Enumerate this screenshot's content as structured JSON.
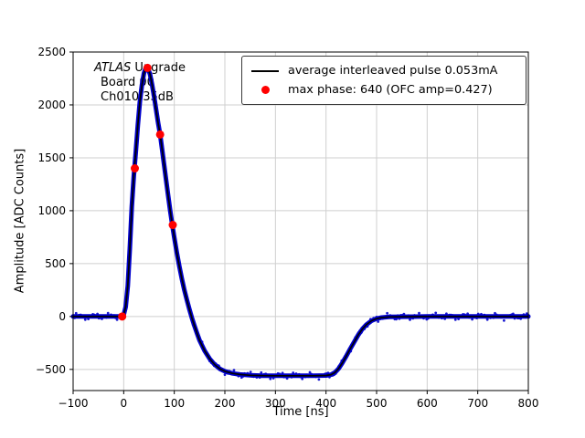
{
  "annotation": {
    "line1_italic": "ATLAS",
    "line1_rest": " Upgrade",
    "line2": "Board 00",
    "line3": "Ch010 35dB"
  },
  "chart_data": {
    "type": "line",
    "title": "",
    "xlabel": "Time [ns]",
    "ylabel": "Amplitude [ADC Counts]",
    "xlim": [
      -100,
      800
    ],
    "ylim": [
      -700,
      2500
    ],
    "xticks": [
      -100,
      0,
      100,
      200,
      300,
      400,
      500,
      600,
      700,
      800
    ],
    "yticks": [
      -500,
      0,
      500,
      1000,
      1500,
      2000,
      2500
    ],
    "grid": true,
    "legend_position": "upper right",
    "band_color": "#0000cc",
    "series": [
      {
        "name": "average interleaved pulse 0.053mA",
        "type": "line",
        "color": "#000000",
        "x": [
          -100,
          -90,
          -80,
          -70,
          -60,
          -50,
          -40,
          -30,
          -20,
          -10,
          -5,
          0,
          4,
          8,
          12,
          16,
          20,
          24,
          28,
          32,
          36,
          40,
          44,
          48,
          52,
          56,
          60,
          64,
          68,
          72,
          76,
          80,
          84,
          88,
          92,
          96,
          100,
          105,
          110,
          115,
          120,
          125,
          130,
          135,
          140,
          145,
          150,
          160,
          170,
          180,
          190,
          200,
          215,
          230,
          250,
          275,
          300,
          325,
          350,
          375,
          400,
          410,
          418,
          425,
          432,
          440,
          448,
          456,
          464,
          472,
          480,
          490,
          500,
          510,
          525,
          550,
          575,
          600,
          650,
          700,
          750,
          800
        ],
        "y": [
          0,
          0,
          0,
          0,
          0,
          0,
          0,
          0,
          0,
          0,
          0,
          15,
          90,
          290,
          640,
          1040,
          1330,
          1560,
          1810,
          2030,
          2190,
          2300,
          2355,
          2345,
          2290,
          2195,
          2085,
          1960,
          1830,
          1720,
          1575,
          1430,
          1285,
          1140,
          1000,
          865,
          745,
          605,
          475,
          355,
          250,
          155,
          65,
          -15,
          -90,
          -160,
          -225,
          -325,
          -400,
          -455,
          -495,
          -518,
          -538,
          -548,
          -556,
          -559,
          -560,
          -560,
          -560,
          -560,
          -558,
          -550,
          -528,
          -492,
          -440,
          -375,
          -305,
          -238,
          -172,
          -118,
          -76,
          -40,
          -20,
          -10,
          -4,
          -2,
          -1,
          0,
          0,
          0,
          0,
          0
        ]
      },
      {
        "name": "max phase: 640 (OFC amp=0.427)",
        "type": "scatter",
        "color": "#ff0000",
        "points": [
          [
            -3,
            0
          ],
          [
            22,
            1400
          ],
          [
            47,
            2350
          ],
          [
            72,
            1720
          ],
          [
            97,
            865
          ]
        ]
      }
    ]
  }
}
